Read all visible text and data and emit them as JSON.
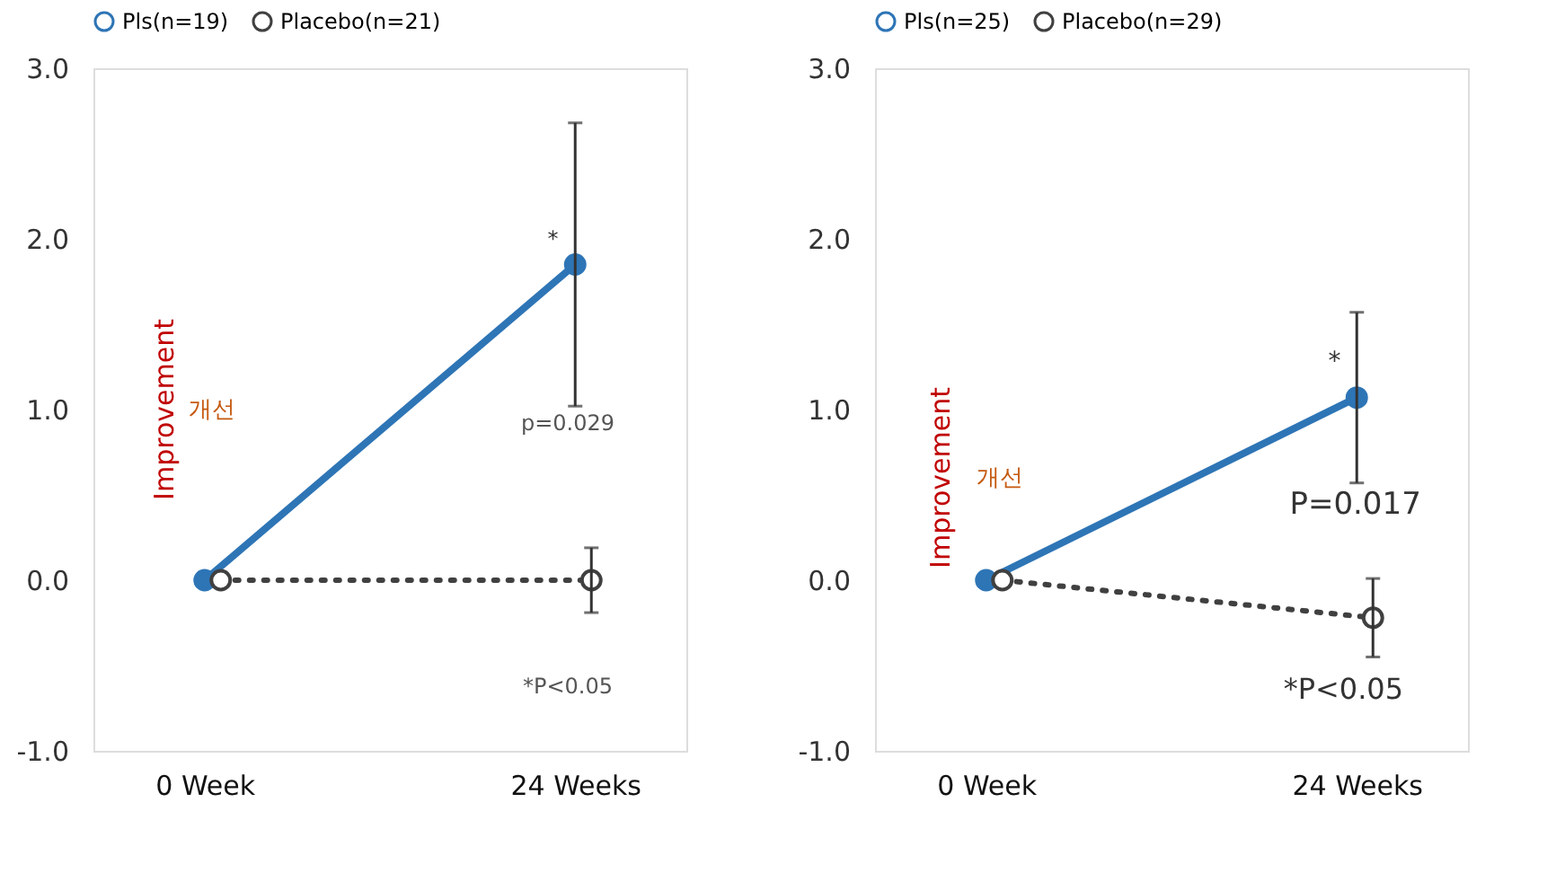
{
  "chart_data": [
    {
      "type": "line",
      "categories": [
        "0 Week",
        "24 Weeks"
      ],
      "ylim": [
        -1,
        3
      ],
      "yticks": [
        {
          "value": -1,
          "label": "-1.0"
        },
        {
          "value": 0,
          "label": "0.0"
        },
        {
          "value": 1,
          "label": "1.0"
        },
        {
          "value": 2,
          "label": "2.0"
        },
        {
          "value": 3,
          "label": "3.0"
        }
      ],
      "legend": "top",
      "series": [
        {
          "name": "Pls(n=19)",
          "color": "#2e75b6",
          "values": [
            0,
            1.85
          ],
          "errors": [
            null,
            0.83
          ],
          "marker": "circle",
          "line_style": "solid"
        },
        {
          "name": "Placebo(n=21)",
          "color": "#404040",
          "values": [
            0,
            0
          ],
          "errors": [
            null,
            0.19
          ],
          "marker": "circle",
          "line_style": "dotted"
        }
      ],
      "annotations": [
        "Improvement",
        "개선",
        "p=0.029",
        "*P<0.05",
        "*"
      ]
    },
    {
      "type": "line",
      "categories": [
        "0 Week",
        "24 Weeks"
      ],
      "ylim": [
        -1,
        3
      ],
      "yticks": [
        {
          "value": -1,
          "label": "-1.0"
        },
        {
          "value": 0,
          "label": "0.0"
        },
        {
          "value": 1,
          "label": "1.0"
        },
        {
          "value": 2,
          "label": "2.0"
        },
        {
          "value": 3,
          "label": "3.0"
        }
      ],
      "legend": "top",
      "series": [
        {
          "name": "Pls(n=25)",
          "color": "#2e75b6",
          "values": [
            0,
            1.07
          ],
          "errors": [
            null,
            0.5
          ],
          "marker": "circle",
          "line_style": "solid"
        },
        {
          "name": "Placebo(n=29)",
          "color": "#404040",
          "values": [
            0,
            -0.22
          ],
          "errors": [
            null,
            0.23
          ],
          "marker": "circle",
          "line_style": "dotted"
        }
      ],
      "annotations": [
        "Improvement",
        "개선",
        "P=0.017",
        "*P<0.05",
        "*"
      ]
    }
  ]
}
